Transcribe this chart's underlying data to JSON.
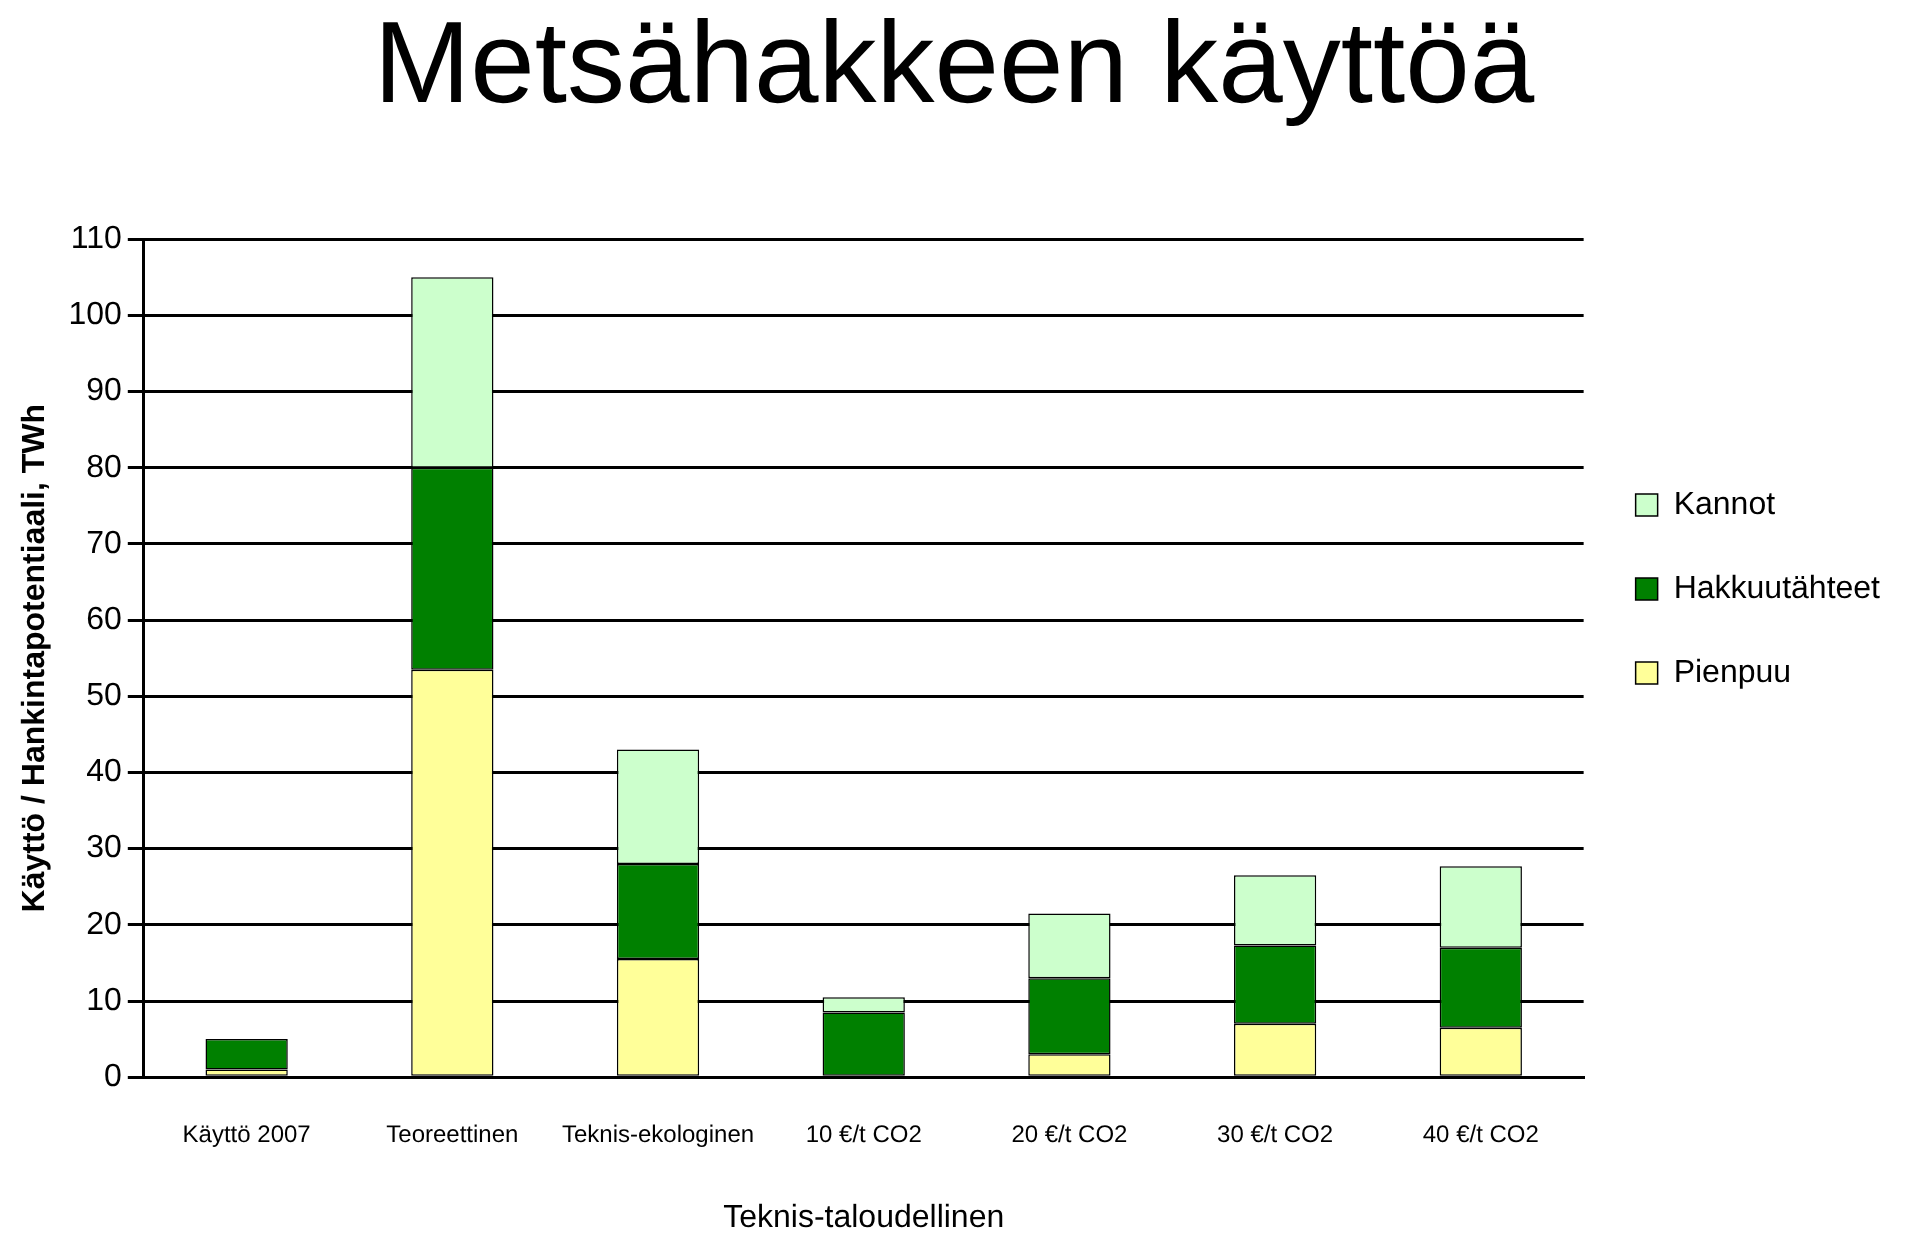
{
  "chart_data": {
    "type": "bar",
    "title": "Metsähakkeen käyttöä",
    "ylabel": "Käyttö / Hankintapotentiaali, TWh",
    "categories": [
      "Käyttö 2007",
      "Teoreettinen",
      "Teknis-ekologinen",
      "10 €/t CO2",
      "20 €/t CO2",
      "30 €/t CO2",
      "40 €/t CO2"
    ],
    "series": [
      {
        "name": "Pienpuu",
        "color": "#ffff99",
        "values": [
          1,
          53.5,
          15.5,
          0,
          3,
          7,
          6.5
        ]
      },
      {
        "name": "Hakkuutähteet",
        "color": "#008000",
        "values": [
          4,
          26.5,
          12.5,
          8.5,
          10,
          10.3,
          10.5
        ]
      },
      {
        "name": "Kannot",
        "color": "#ccffcc",
        "values": [
          0,
          25,
          15,
          2,
          8.5,
          9.2,
          10.7
        ]
      }
    ],
    "stacked": true,
    "ylim": [
      0,
      110
    ],
    "yticks": [
      0,
      10,
      20,
      30,
      40,
      50,
      60,
      70,
      80,
      90,
      100,
      110
    ],
    "grid": "y",
    "legend": "right",
    "annotations": [
      "Teknis-taloudellinen"
    ]
  }
}
